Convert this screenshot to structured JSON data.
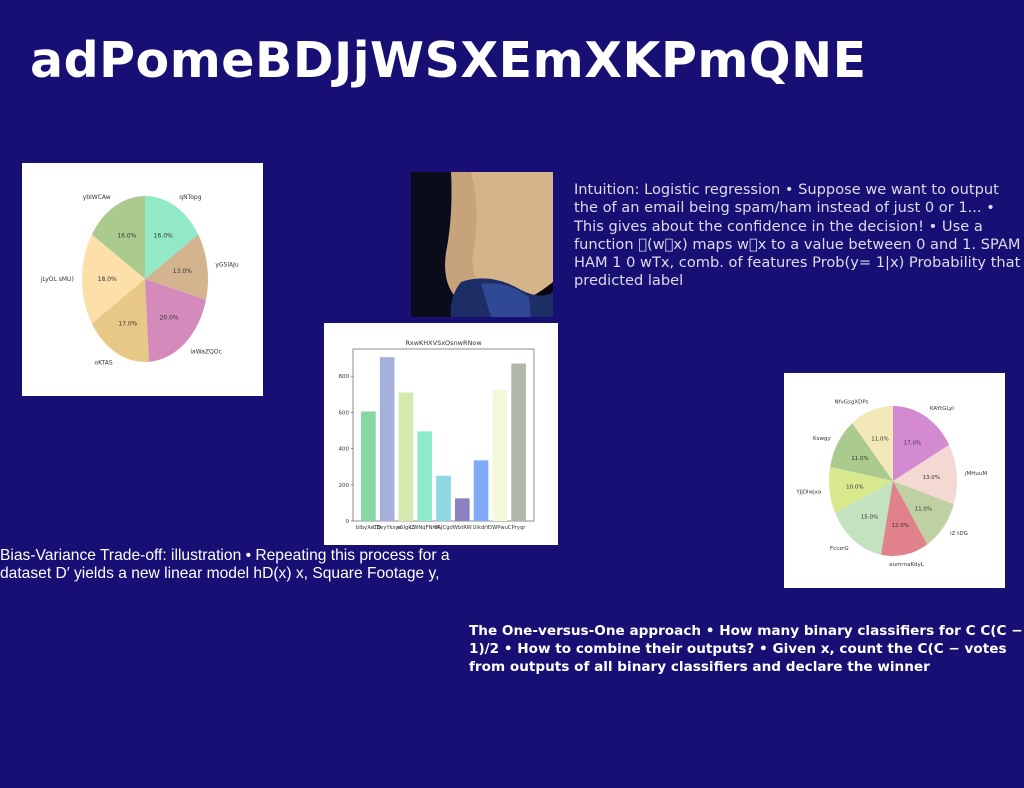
{
  "slide": {
    "title": "adPomeBDJjWSXEmXKPmQNE",
    "logistic_text": "Intuition: Logistic regression • Suppose we want to output the of an email being spam/ham instead of just 0 or 1... • This gives about the confidence in the decision! • Use a function \u0000(w\u0000x) maps w\u0000x to a value between 0 and 1. SPAM HAM 1 0 wTx, comb. of features Prob(y= 1|x) Probability that predicted label",
    "bias_variance_text": "Bias-Variance Trade-off: illustration • Repeating this process for a dataset D′ yields a new linear model hD(x) x, Square Footage y,",
    "ovo_text": "The One-versus-One approach • How many binary classifiers for C C(C − 1)/2 • How to combine their outputs? • Given x, count the C(C − votes from outputs of all binary classifiers and declare the winner"
  },
  "chart_data": [
    {
      "type": "pie",
      "categories": [
        "ybIWCAw",
        "jLyOL sMU)",
        "oKTAS",
        "iaWaZQOc",
        "yGSlAJu",
        "qNTopg"
      ],
      "values": [
        16.0,
        18.0,
        17.0,
        20.0,
        13.0,
        16.0
      ],
      "labels": [
        "16.0%",
        "18.0%",
        "17.0%",
        "20.0%",
        "13.0%",
        "16.0%"
      ],
      "colors": [
        "#abcb8e",
        "#fcdfa9",
        "#e7c887",
        "#d48bbc",
        "#d3b48e",
        "#92e9c6"
      ]
    },
    {
      "type": "bar",
      "title": "RxwKHXVSxOsnwRNow",
      "categories": [
        "bIbyXeTQ",
        "CBeyYksya",
        "eSIgkZ",
        "CWNqFNHA",
        "dAJCgd",
        "WbtRW",
        "UlkdrY",
        "DWPwuC",
        "Pryqr"
      ],
      "values": [
        605,
        905,
        710,
        495,
        250,
        125,
        335,
        725,
        870
      ],
      "colors": [
        "#86d6a6",
        "#a6b0dc",
        "#d3e9ad",
        "#8ee9cd",
        "#8fd7e3",
        "#8c82c2",
        "#82abf7",
        "#f3f8d9",
        "#b1b8aa"
      ],
      "yticks": [
        0,
        200,
        400,
        600,
        800
      ],
      "ylim": [
        0,
        950
      ]
    },
    {
      "type": "pie",
      "categories": [
        "NfvGsgXDPs",
        "Kswgy",
        "YJjDlwjxa",
        "FcczrG",
        "eumrnaKdyL",
        "iZ tDG",
        "jMHuuM",
        "KAYtGLyI"
      ],
      "values": [
        11.0,
        11.0,
        10.0,
        15.0,
        12.0,
        11.0,
        13.0,
        17.0
      ],
      "labels": [
        "11.0%",
        "11.0%",
        "10.0%",
        "15.0%",
        "12.0%",
        "11.0%",
        "13.0%",
        "17.0%"
      ],
      "colors": [
        "#f2e8b8",
        "#abcb8e",
        "#d8e98e",
        "#c2e2c0",
        "#e0818c",
        "#bfd0a3",
        "#f3d9d2",
        "#d48ad0"
      ]
    }
  ]
}
